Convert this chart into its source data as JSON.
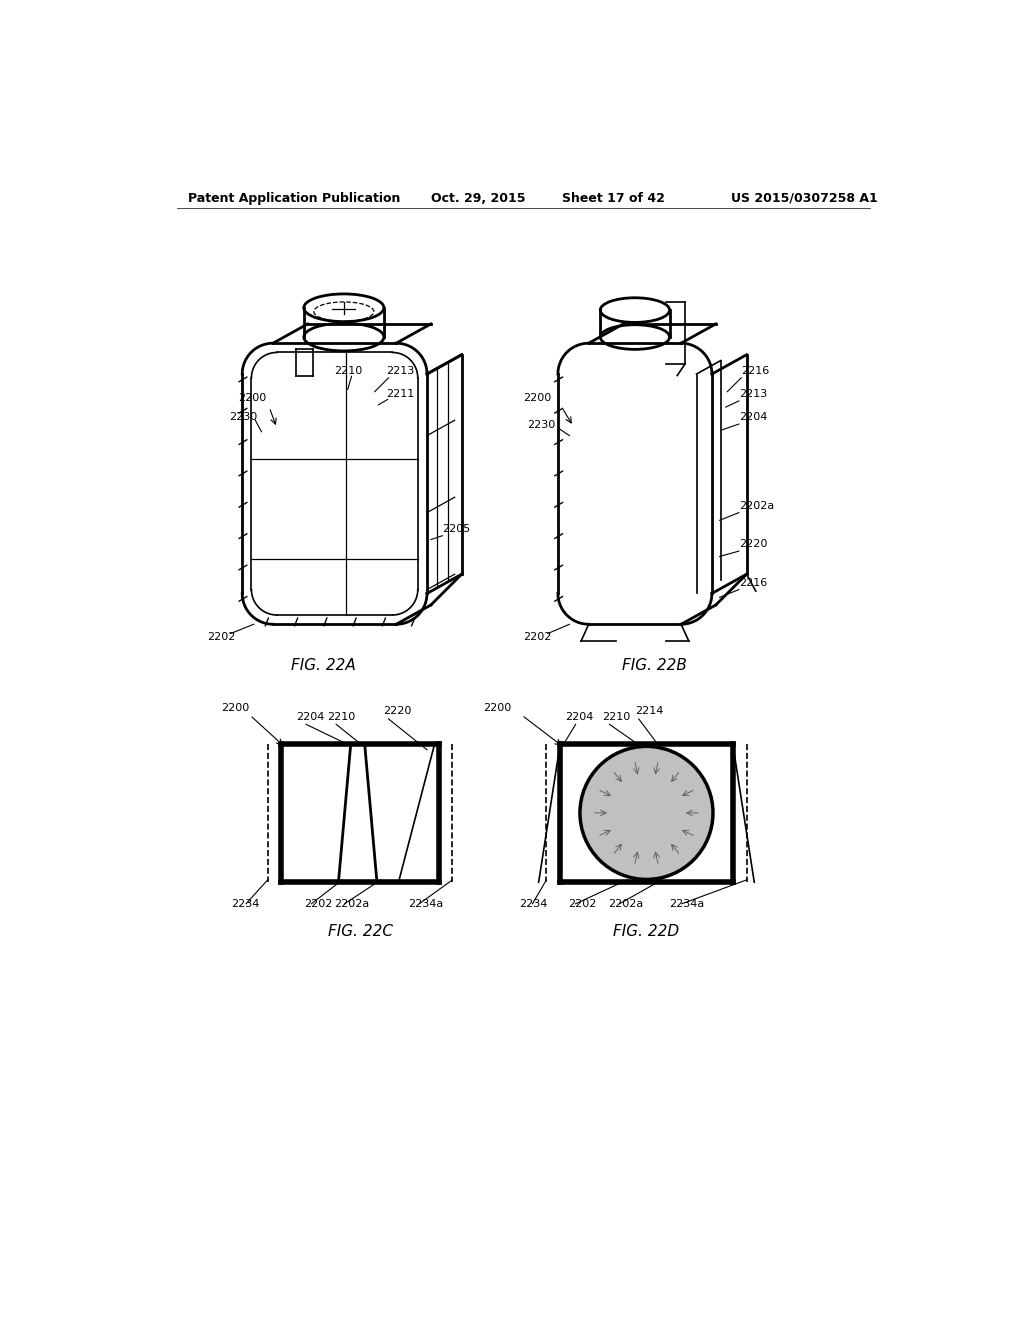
{
  "bg_color": "#ffffff",
  "header_text": "Patent Application Publication",
  "header_date": "Oct. 29, 2015",
  "header_sheet": "Sheet 17 of 42",
  "header_patent": "US 2015/0307258 A1",
  "fig22a_label": "FIG. 22A",
  "fig22b_label": "FIG. 22B",
  "fig22c_label": "FIG. 22C",
  "fig22d_label": "FIG. 22D",
  "line_color": "#000000",
  "gray_color": "#c0c0c0",
  "light_gray": "#e8e8e8"
}
